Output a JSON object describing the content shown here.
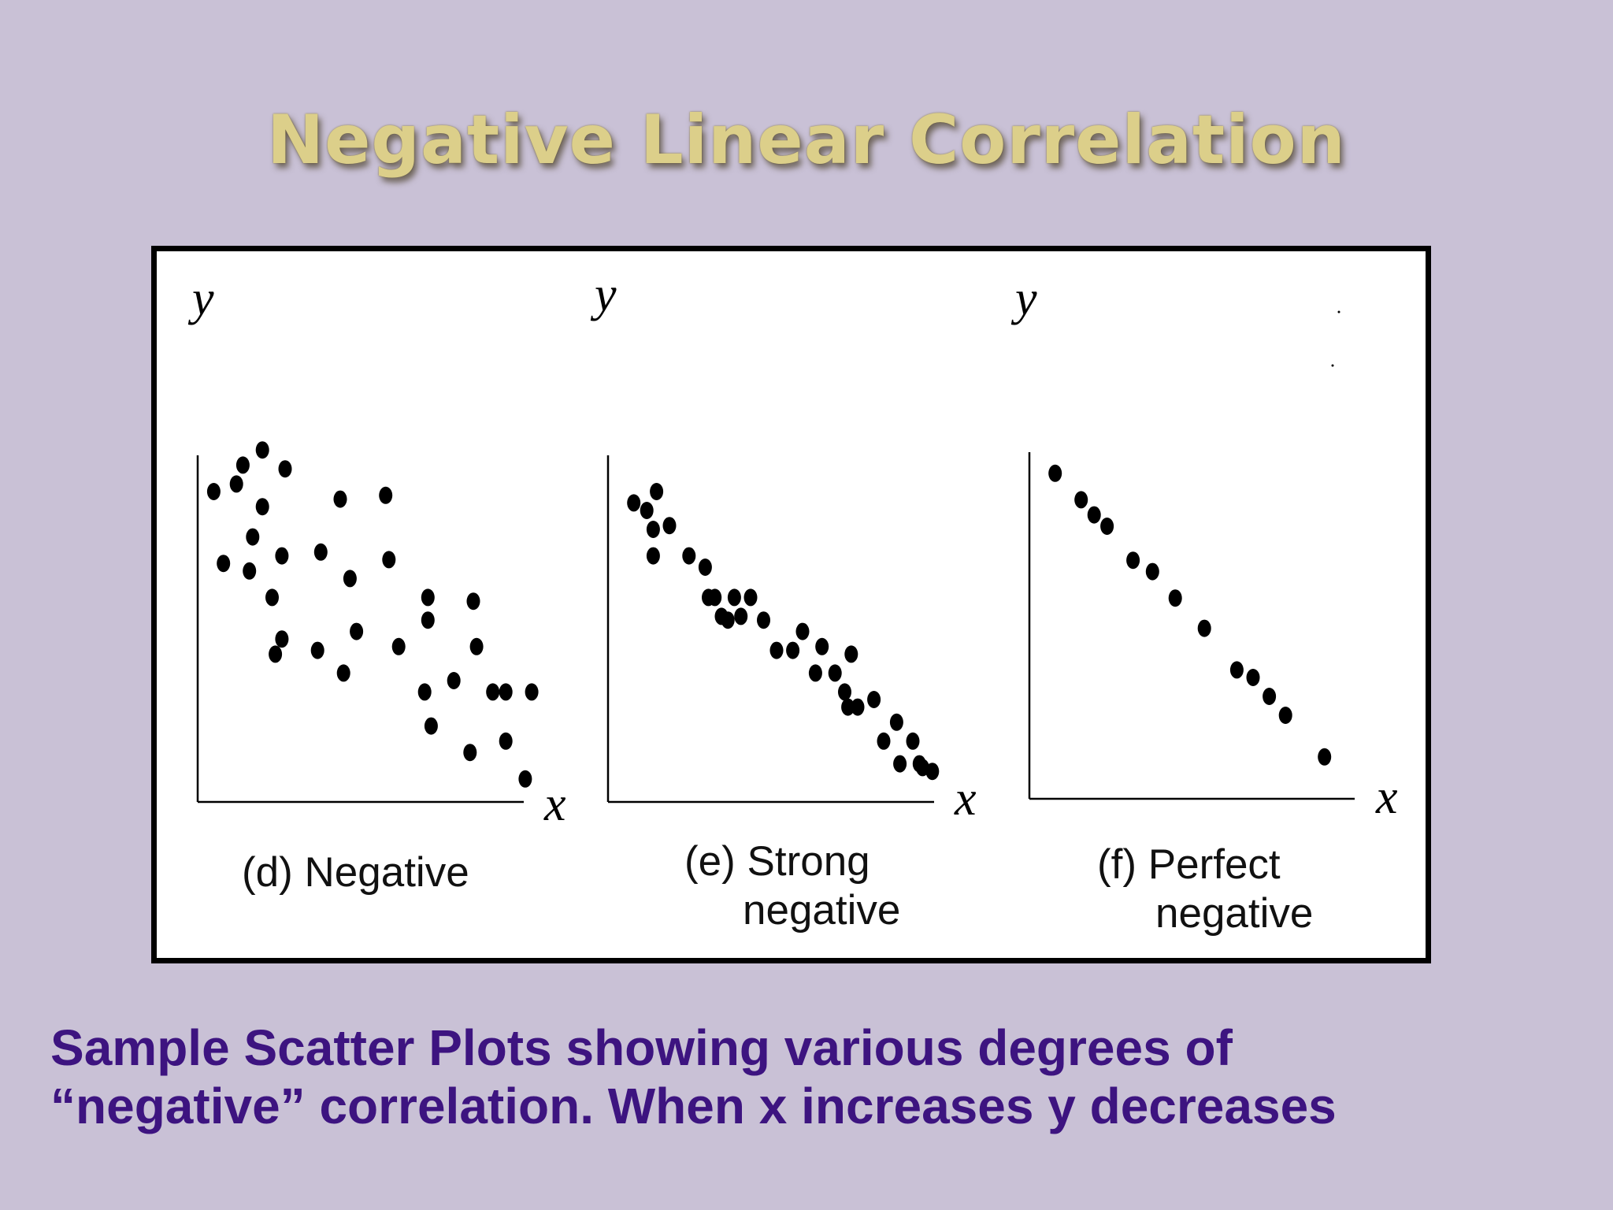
{
  "title": "Negative Linear Correlation",
  "colors": {
    "background": "#c9c1d6",
    "title": "#dccf8a",
    "bottom_text": "#3d1480",
    "points": "#000000"
  },
  "chart_data": [
    {
      "type": "scatter",
      "caption": [
        "(d) Negative",
        ""
      ],
      "xlabel": "x",
      "ylabel": "y",
      "xlim": [
        0,
        100
      ],
      "ylim": [
        0,
        100
      ],
      "points": [
        [
          3,
          80
        ],
        [
          6,
          61
        ],
        [
          10,
          82
        ],
        [
          12,
          87
        ],
        [
          14,
          59
        ],
        [
          15,
          68
        ],
        [
          18,
          76
        ],
        [
          18,
          91
        ],
        [
          21,
          52
        ],
        [
          22,
          37
        ],
        [
          24,
          63
        ],
        [
          24,
          41
        ],
        [
          25,
          86
        ],
        [
          35,
          38
        ],
        [
          36,
          64
        ],
        [
          42,
          78
        ],
        [
          43,
          32
        ],
        [
          45,
          57
        ],
        [
          47,
          43
        ],
        [
          56,
          79
        ],
        [
          57,
          62
        ],
        [
          60,
          39
        ],
        [
          69,
          52
        ],
        [
          69,
          46
        ],
        [
          68,
          27
        ],
        [
          70,
          18
        ],
        [
          77,
          30
        ],
        [
          82,
          11
        ],
        [
          83,
          51
        ],
        [
          84,
          39
        ],
        [
          89,
          27
        ],
        [
          93,
          27
        ],
        [
          93,
          14
        ],
        [
          99,
          4
        ],
        [
          101,
          27
        ]
      ]
    },
    {
      "type": "scatter",
      "caption": [
        "(e) Strong",
        "negative"
      ],
      "xlabel": "x",
      "ylabel": "y",
      "xlim": [
        0,
        100
      ],
      "ylim": [
        0,
        100
      ],
      "points": [
        [
          6,
          77
        ],
        [
          10,
          75
        ],
        [
          12,
          70
        ],
        [
          12,
          63
        ],
        [
          13,
          80
        ],
        [
          17,
          71
        ],
        [
          23,
          63
        ],
        [
          28,
          60
        ],
        [
          29,
          52
        ],
        [
          31,
          52
        ],
        [
          33,
          47
        ],
        [
          35,
          46
        ],
        [
          37,
          52
        ],
        [
          39,
          47
        ],
        [
          42,
          52
        ],
        [
          46,
          46
        ],
        [
          50,
          38
        ],
        [
          55,
          38
        ],
        [
          58,
          43
        ],
        [
          62,
          32
        ],
        [
          64,
          39
        ],
        [
          68,
          32
        ],
        [
          71,
          27
        ],
        [
          72,
          23
        ],
        [
          73,
          37
        ],
        [
          75,
          23
        ],
        [
          80,
          25
        ],
        [
          83,
          14
        ],
        [
          87,
          19
        ],
        [
          88,
          8
        ],
        [
          92,
          14
        ],
        [
          94,
          8
        ],
        [
          95,
          7
        ],
        [
          98,
          6
        ]
      ]
    },
    {
      "type": "scatter",
      "caption": [
        "(f) Perfect",
        "negative"
      ],
      "xlabel": "x",
      "ylabel": "y",
      "xlim": [
        0,
        100
      ],
      "ylim": [
        0,
        100
      ],
      "points": [
        [
          6,
          84
        ],
        [
          14,
          77
        ],
        [
          18,
          73
        ],
        [
          22,
          70
        ],
        [
          30,
          61
        ],
        [
          36,
          58
        ],
        [
          43,
          51
        ],
        [
          52,
          43
        ],
        [
          62,
          32
        ],
        [
          67,
          30
        ],
        [
          72,
          25
        ],
        [
          77,
          20
        ],
        [
          89,
          9
        ]
      ]
    }
  ],
  "description_lines": [
    "Sample Scatter Plots showing various degrees of",
    "“negative” correlation.  When x increases y decreases"
  ]
}
